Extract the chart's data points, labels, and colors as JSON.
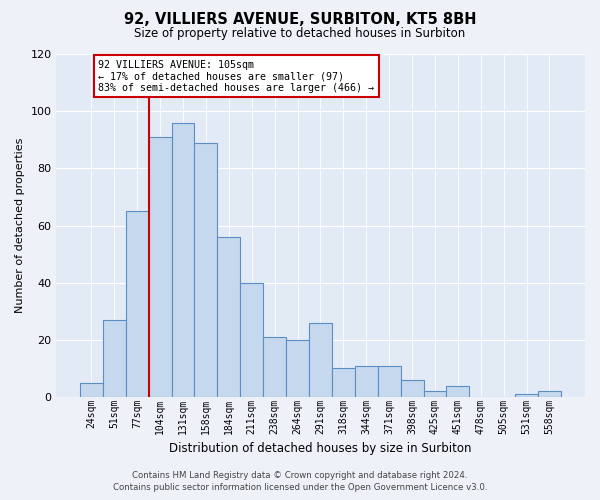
{
  "title": "92, VILLIERS AVENUE, SURBITON, KT5 8BH",
  "subtitle": "Size of property relative to detached houses in Surbiton",
  "xlabel": "Distribution of detached houses by size in Surbiton",
  "ylabel": "Number of detached properties",
  "bar_labels": [
    "24sqm",
    "51sqm",
    "77sqm",
    "104sqm",
    "131sqm",
    "158sqm",
    "184sqm",
    "211sqm",
    "238sqm",
    "264sqm",
    "291sqm",
    "318sqm",
    "344sqm",
    "371sqm",
    "398sqm",
    "425sqm",
    "451sqm",
    "478sqm",
    "505sqm",
    "531sqm",
    "558sqm"
  ],
  "bar_values": [
    5,
    27,
    65,
    91,
    96,
    89,
    56,
    40,
    21,
    20,
    26,
    10,
    11,
    11,
    6,
    2,
    4,
    0,
    0,
    1,
    2
  ],
  "bar_color": "#c5d8ee",
  "bar_edge_color": "#5b8ec4",
  "ylim": [
    0,
    120
  ],
  "yticks": [
    0,
    20,
    40,
    60,
    80,
    100,
    120
  ],
  "vline_x": 3.5,
  "marker_label": "92 VILLIERS AVENUE: 105sqm",
  "annotation_line1": "← 17% of detached houses are smaller (97)",
  "annotation_line2": "83% of semi-detached houses are larger (466) →",
  "vline_color": "#cc0000",
  "annotation_box_color": "#ffffff",
  "annotation_box_edge": "#cc0000",
  "footer_line1": "Contains HM Land Registry data © Crown copyright and database right 2024.",
  "footer_line2": "Contains public sector information licensed under the Open Government Licence v3.0.",
  "background_color": "#eef2f8",
  "plot_bg_color": "#e2eaf6"
}
